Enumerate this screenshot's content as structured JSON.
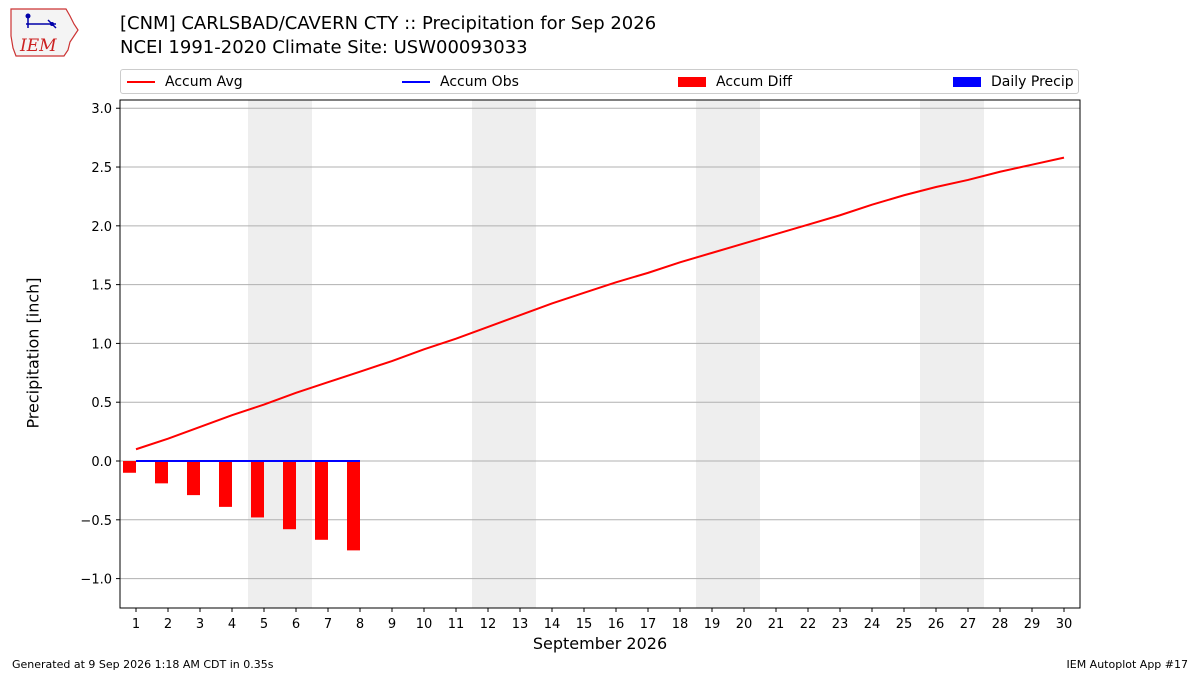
{
  "header": {
    "logo_text": "IEM",
    "title_line1": "[CNM] CARLSBAD/CAVERN CTY :: Precipitation for Sep 2026",
    "title_line2": "NCEI 1991-2020 Climate Site: USW00093033"
  },
  "footer": {
    "generated": "Generated at 9 Sep 2026 1:18 AM CDT in 0.35s",
    "app": "IEM Autoplot App #17"
  },
  "chart_data": {
    "type": "bar",
    "xlabel": "September 2026",
    "ylabel": "Precipitation [inch]",
    "ylim": [
      -1.25,
      3.07
    ],
    "xlim": [
      0.5,
      30.5
    ],
    "grid": "horizontal",
    "legend_placement": "top",
    "x": [
      1,
      2,
      3,
      4,
      5,
      6,
      7,
      8,
      9,
      10,
      11,
      12,
      13,
      14,
      15,
      16,
      17,
      18,
      19,
      20,
      21,
      22,
      23,
      24,
      25,
      26,
      27,
      28,
      29,
      30
    ],
    "x_tick_labels": [
      "1",
      "2",
      "3",
      "4",
      "5",
      "6",
      "7",
      "8",
      "9",
      "10",
      "11",
      "12",
      "13",
      "14",
      "15",
      "16",
      "17",
      "18",
      "19",
      "20",
      "21",
      "22",
      "23",
      "24",
      "25",
      "26",
      "27",
      "28",
      "29",
      "30"
    ],
    "y_ticks": [
      -1.0,
      -0.5,
      0.0,
      0.5,
      1.0,
      1.5,
      2.0,
      2.5,
      3.0
    ],
    "y_tick_labels": [
      "−1.0",
      "−0.5",
      "0.0",
      "0.5",
      "1.0",
      "1.5",
      "2.0",
      "2.5",
      "3.0"
    ],
    "weekend_shading": [
      [
        4.5,
        6.5
      ],
      [
        11.5,
        13.5
      ],
      [
        18.5,
        20.5
      ],
      [
        25.5,
        27.5
      ]
    ],
    "series": [
      {
        "name": "Accum Avg",
        "kind": "line",
        "color": "#ff0000",
        "values": [
          0.1,
          0.19,
          0.29,
          0.39,
          0.48,
          0.58,
          0.67,
          0.76,
          0.85,
          0.95,
          1.04,
          1.14,
          1.24,
          1.34,
          1.43,
          1.52,
          1.6,
          1.69,
          1.77,
          1.85,
          1.93,
          2.01,
          2.09,
          2.18,
          2.26,
          2.33,
          2.39,
          2.46,
          2.52,
          2.58
        ]
      },
      {
        "name": "Accum Obs",
        "kind": "line",
        "color": "#0000ff",
        "x": [
          1,
          2,
          3,
          4,
          5,
          6,
          7,
          8
        ],
        "values": [
          0,
          0,
          0,
          0,
          0,
          0,
          0,
          0
        ]
      },
      {
        "name": "Accum Diff",
        "kind": "bar",
        "color": "#ff0000",
        "x": [
          1,
          2,
          3,
          4,
          5,
          6,
          7,
          8
        ],
        "values": [
          -0.1,
          -0.19,
          -0.29,
          -0.39,
          -0.48,
          -0.58,
          -0.67,
          -0.76
        ]
      },
      {
        "name": "Daily Precip",
        "kind": "bar",
        "color": "#0000ff",
        "x": [
          1,
          2,
          3,
          4,
          5,
          6,
          7,
          8
        ],
        "values": [
          0,
          0,
          0,
          0,
          0,
          0,
          0,
          0
        ]
      }
    ]
  }
}
